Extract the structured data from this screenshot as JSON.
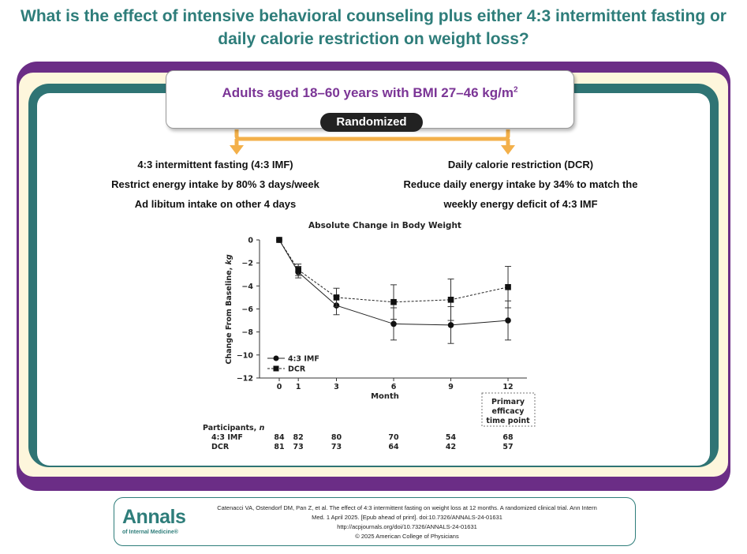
{
  "header": {
    "title_line1": "What is the effect of intensive behavioral counseling plus either 4:3 intermittent fasting or",
    "title_line2": "daily calorie restriction on weight loss?"
  },
  "population": {
    "text": "Adults aged 18–60 years with BMI 27–46 kg/m",
    "superscript": "2"
  },
  "randomized_label": "Randomized",
  "arms": {
    "left": {
      "name": "4:3 intermittent fasting (4:3 IMF)",
      "line2": "Restrict energy intake by 80% 3 days/week",
      "line3": "Ad libitum intake on other 4 days"
    },
    "right": {
      "name": "Daily calorie restriction (DCR)",
      "line2": "Reduce daily energy intake by 34% to match the",
      "line3": "weekly energy deficit of 4:3 IMF"
    }
  },
  "chart_data": {
    "type": "line",
    "title": "Absolute Change in Body Weight",
    "xlabel": "Month",
    "ylabel_prefix": "Change From Baseline, ",
    "ylabel_unit": "kg",
    "x": [
      0,
      1,
      3,
      6,
      9,
      12
    ],
    "x_ticks": [
      "0",
      "1",
      "3",
      "6",
      "9",
      "12"
    ],
    "y_ticks": [
      "0",
      "−2",
      "−4",
      "−6",
      "−8",
      "−10",
      "−12"
    ],
    "ylim": [
      -12,
      0
    ],
    "series": [
      {
        "name": "4:3 IMF",
        "marker": "circle",
        "line_style": "solid",
        "values": [
          0,
          -2.8,
          -5.7,
          -7.3,
          -7.4,
          -7.0
        ],
        "error_low": [
          0,
          -3.3,
          -6.5,
          -8.7,
          -9.0,
          -8.7
        ],
        "error_high": [
          0,
          -2.3,
          -4.9,
          -5.9,
          -5.8,
          -5.3
        ]
      },
      {
        "name": "DCR",
        "marker": "square",
        "line_style": "dashed",
        "values": [
          0,
          -2.6,
          -5.0,
          -5.4,
          -5.2,
          -4.1
        ],
        "error_low": [
          0,
          -3.1,
          -5.8,
          -6.9,
          -7.0,
          -5.9
        ],
        "error_high": [
          0,
          -2.1,
          -4.2,
          -3.9,
          -3.4,
          -2.3
        ]
      }
    ],
    "legend_position": "bottom-left",
    "grid": false,
    "annotation": {
      "line1": "Primary",
      "line2": "efficacy",
      "line3": "time point"
    },
    "participants": {
      "header_prefix": "Participants, ",
      "header_n": "n",
      "rows": [
        {
          "label": "4:3 IMF",
          "counts": [
            "84",
            "82",
            "80",
            "70",
            "54",
            "68"
          ]
        },
        {
          "label": "DCR",
          "counts": [
            "81",
            "73",
            "73",
            "64",
            "42",
            "57"
          ]
        }
      ]
    }
  },
  "citation": {
    "logo_main": "Annals",
    "logo_sub": "of Internal Medicine",
    "logo_reg": "®",
    "line1": "Catenacci VA, Ostendorf DM, Pan Z, et al. The effect of 4:3 intermittent fasting on weight loss at 12 months. A randomized clinical trial. Ann Intern",
    "line2": "Med. 1 April 2025. [Epub ahead of print]. doi:10.7326/ANNALS-24-01631",
    "line3": "http://acpjournals.org/doi/10.7326/ANNALS-24-01631",
    "line4": "© 2025 American College of Physicians"
  },
  "colors": {
    "teal": "#2f7474",
    "purple": "#6b2d86",
    "orange_arrow": "#f3b04a",
    "population_text": "#7b3596"
  }
}
